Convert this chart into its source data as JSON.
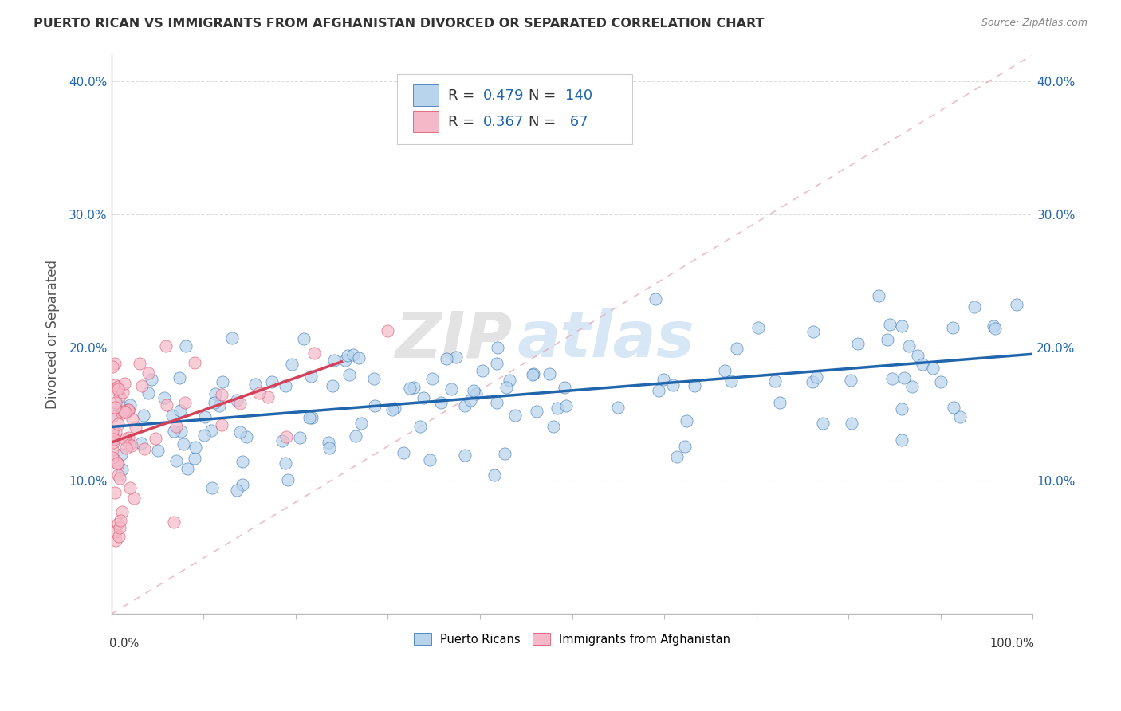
{
  "title": "PUERTO RICAN VS IMMIGRANTS FROM AFGHANISTAN DIVORCED OR SEPARATED CORRELATION CHART",
  "source": "Source: ZipAtlas.com",
  "ylabel": "Divorced or Separated",
  "watermark_zip": "ZIP",
  "watermark_atlas": "atlas",
  "blue_color": "#b8d4ed",
  "pink_color": "#f5b8c8",
  "blue_line_color": "#2166ac",
  "pink_line_color": "#d6415a",
  "ref_line_color": "#f5b8c8",
  "background_color": "#ffffff",
  "legend_blue_R": "0.479",
  "legend_blue_N": "140",
  "legend_pink_R": "0.367",
  "legend_pink_N": "67",
  "legend_text_color": "#333333",
  "legend_num_color": "#2166ac",
  "ytick_color": "#2166ac",
  "ylabel_color": "#555555",
  "title_color": "#333333",
  "source_color": "#888888",
  "xlim": [
    0.0,
    1.0
  ],
  "ylim": [
    0.0,
    0.42
  ],
  "yticks": [
    0.0,
    0.1,
    0.2,
    0.3,
    0.4
  ],
  "ytick_labels": [
    "",
    "10.0%",
    "20.0%",
    "30.0%",
    "40.0%"
  ]
}
